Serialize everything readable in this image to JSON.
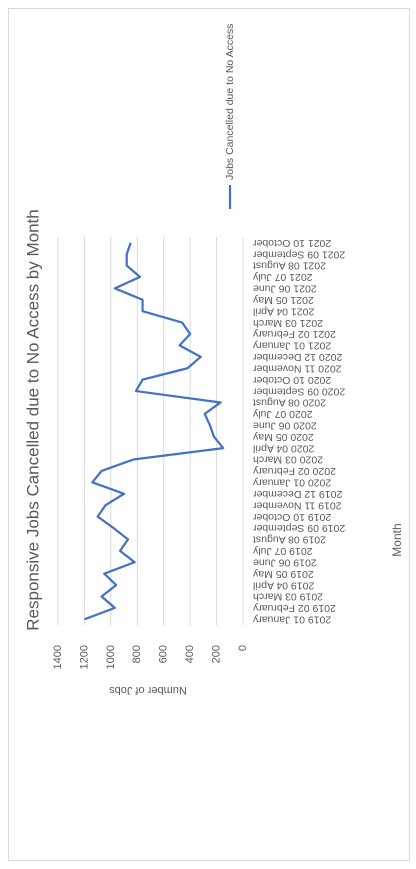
{
  "chart_data": {
    "type": "line",
    "title": "Responsive Jobs Cancelled due to No Access by Month",
    "x_label": "Month",
    "y_label": "Number of Jobs",
    "categories": [
      "2019 01 January",
      "2019 02 February",
      "2019 03 March",
      "2019 04 April",
      "2019 05 May",
      "2019 06 June",
      "2019 07 July",
      "2019 08 August",
      "2019 09 September",
      "2019 10 October",
      "2019 11 November",
      "2019 12 December",
      "2020 01 January",
      "2020 02 February",
      "2020 03 March",
      "2020 04 April",
      "2020 05 May",
      "2020 06 June",
      "2020 07 July",
      "2020 08 August",
      "2020 09 September",
      "2020 10 October",
      "2020 11 November",
      "2020 12 December",
      "2021 01 January",
      "2021 02 February",
      "2021 03 March",
      "2021 04 April",
      "2021 05 May",
      "2021 06 June",
      "2021 07 July",
      "2021 08 August",
      "2021 09 September",
      "2021 10 October"
    ],
    "series": [
      {
        "name": "Jobs Cancelled due to No Access",
        "color": "#4472c4",
        "values": [
          1200,
          970,
          1070,
          960,
          1050,
          820,
          930,
          870,
          980,
          1100,
          1040,
          900,
          1140,
          1070,
          830,
          150,
          220,
          250,
          290,
          170,
          810,
          760,
          420,
          320,
          480,
          400,
          460,
          760,
          760,
          970,
          780,
          880,
          880,
          850
        ]
      }
    ],
    "ylim": [
      0,
      1400
    ],
    "yticks": [
      0,
      200,
      400,
      600,
      800,
      1000,
      1200,
      1400
    ],
    "grid": true,
    "legend": "right"
  }
}
